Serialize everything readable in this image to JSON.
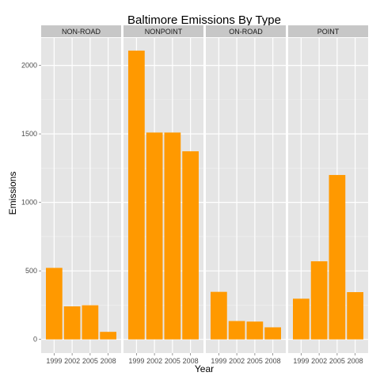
{
  "chart_data": {
    "type": "bar",
    "title": "Baltimore Emissions By Type",
    "xlabel": "Year",
    "ylabel": "Emissions",
    "categories": [
      "1999",
      "2002",
      "2005",
      "2008"
    ],
    "ylim": [
      -100,
      2200
    ],
    "yticks": [
      0,
      500,
      1000,
      1500,
      2000
    ],
    "grid": true,
    "panels": [
      {
        "label": "NON-ROAD",
        "values": [
          522,
          241,
          249,
          55
        ]
      },
      {
        "label": "NONPOINT",
        "values": [
          2108,
          1510,
          1510,
          1373
        ]
      },
      {
        "label": "ON-ROAD",
        "values": [
          347,
          134,
          130,
          88
        ]
      },
      {
        "label": "POINT",
        "values": [
          297,
          570,
          1200,
          345
        ]
      }
    ],
    "colors": {
      "bar": "#FF9900",
      "panel_background": "#E5E5E5",
      "strip_background": "#C7C7C7",
      "grid_major": "#FFFFFF",
      "grid_minor": "#F2F2F2"
    }
  }
}
